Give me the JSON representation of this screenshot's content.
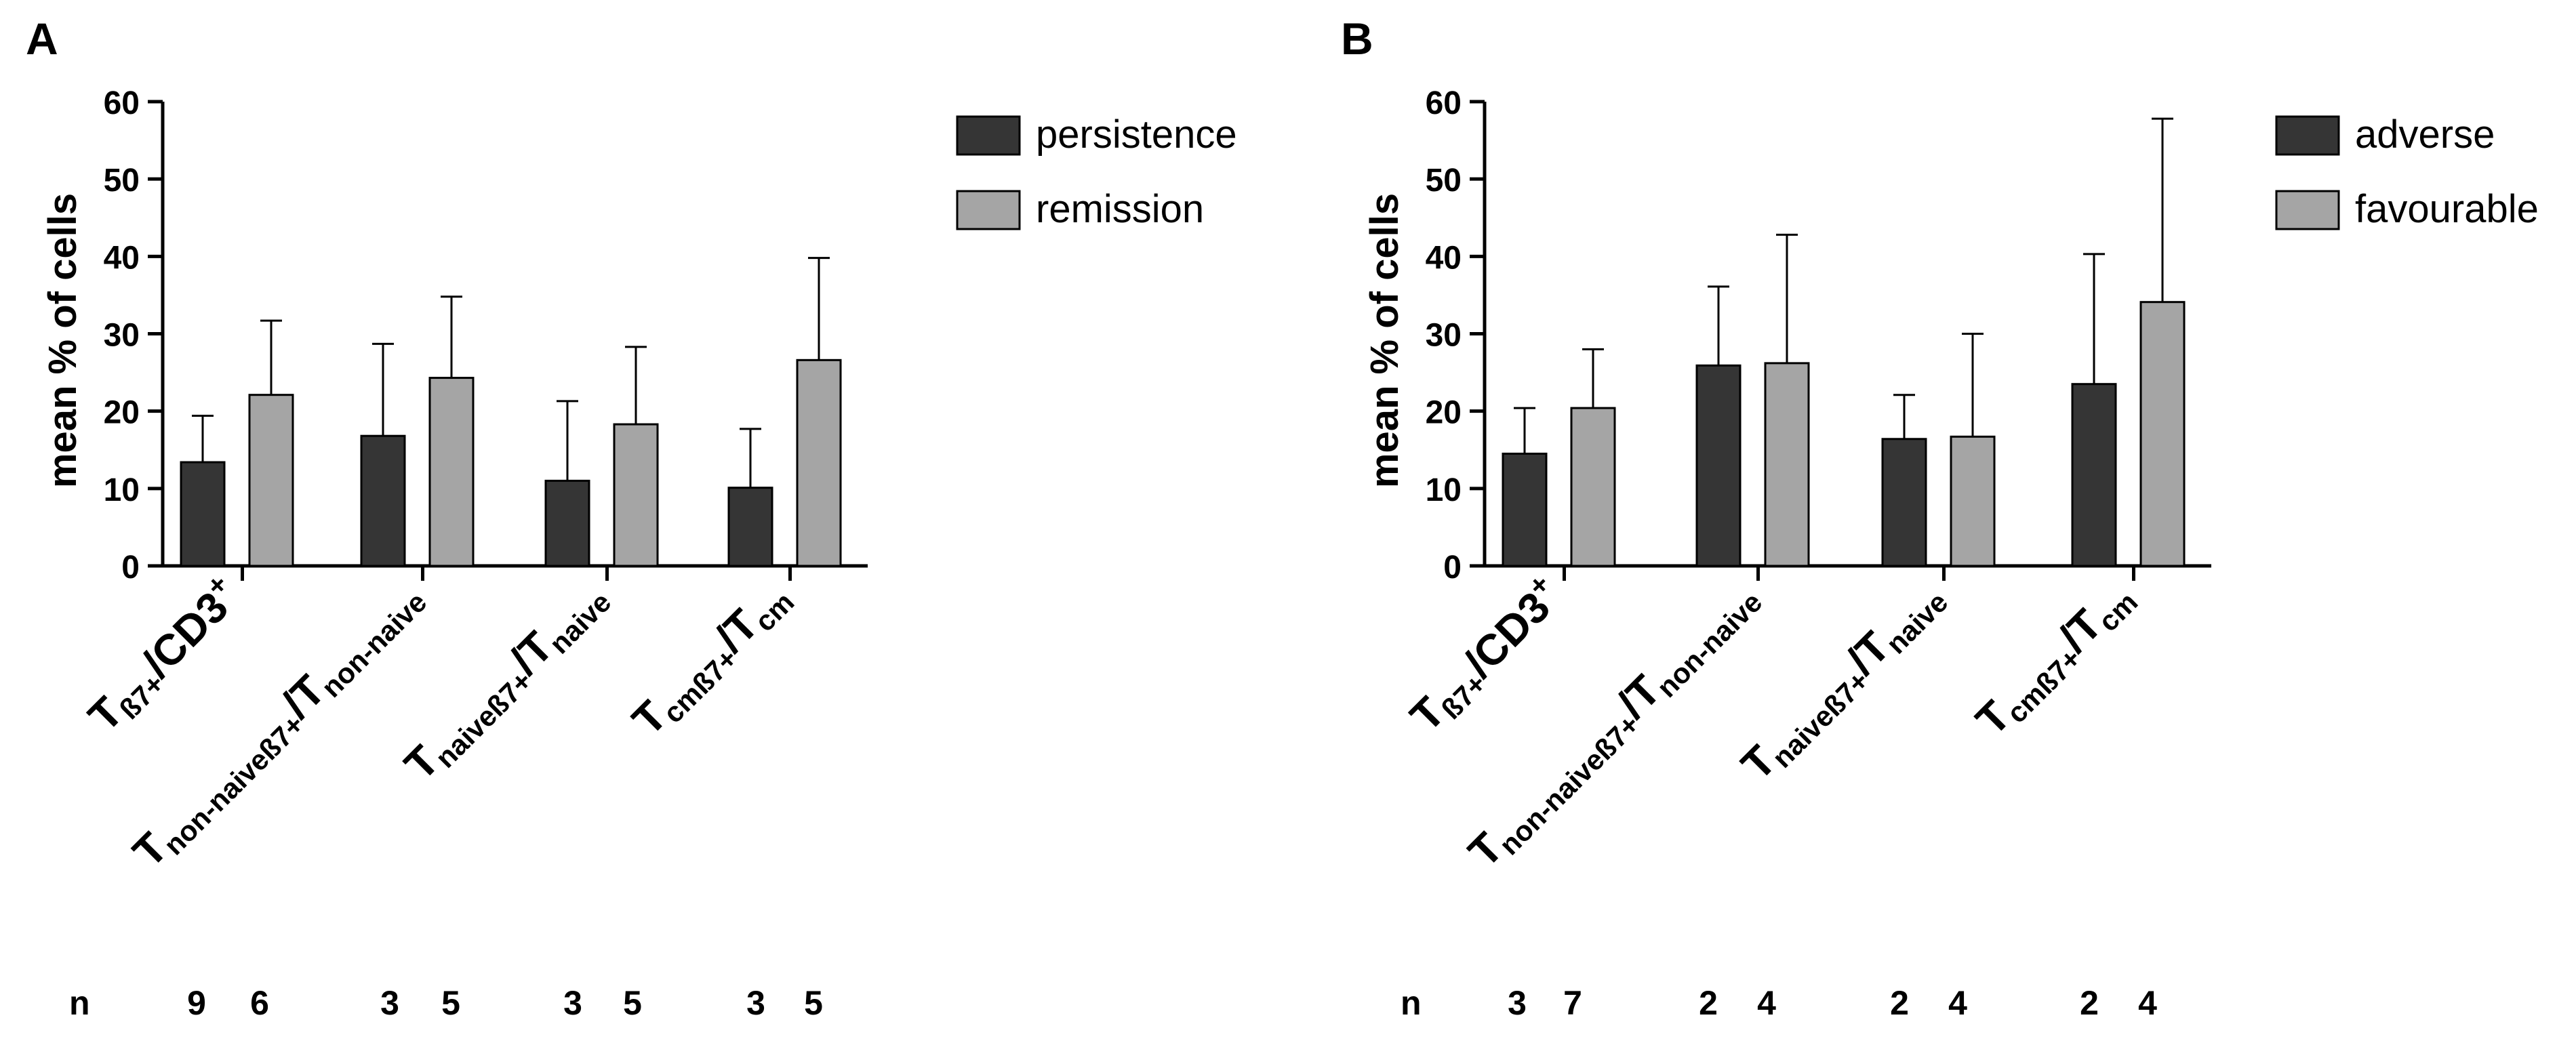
{
  "chart_data": [
    {
      "panel_label": "A",
      "type": "bar",
      "ylabel": "mean % of cells",
      "ylim": [
        0,
        60
      ],
      "yticks": [
        "0",
        "10",
        "20",
        "30",
        "40",
        "50",
        "60"
      ],
      "categories": [
        {
          "parts": [
            [
              "T",
              "b"
            ],
            [
              "ß7+",
              "sub"
            ],
            [
              "/CD3",
              "b"
            ],
            [
              "+",
              "sup"
            ]
          ]
        },
        {
          "parts": [
            [
              "T",
              "b"
            ],
            [
              "non-naiveß7+",
              "sub"
            ],
            [
              "/T",
              "b"
            ],
            [
              "non-naive",
              "sub"
            ]
          ]
        },
        {
          "parts": [
            [
              "T",
              "b"
            ],
            [
              "naiveß7+",
              "sub"
            ],
            [
              "/T",
              "b"
            ],
            [
              "naive",
              "sub"
            ]
          ]
        },
        {
          "parts": [
            [
              "T",
              "b"
            ],
            [
              "cmß7+",
              "sub"
            ],
            [
              "/T",
              "b"
            ],
            [
              "cm",
              "sub"
            ]
          ]
        }
      ],
      "series": [
        {
          "name": "persistence",
          "color": "#353535",
          "values": [
            13.4,
            16.8,
            11.0,
            10.1
          ],
          "errors": [
            6.0,
            11.9,
            10.3,
            7.6
          ]
        },
        {
          "name": "remission",
          "color": "#a5a5a5",
          "values": [
            22.1,
            24.3,
            18.3,
            26.6
          ],
          "errors": [
            9.6,
            10.5,
            10.0,
            13.2
          ]
        }
      ],
      "n_label": "n",
      "n": [
        [
          "9",
          "6"
        ],
        [
          "3",
          "5"
        ],
        [
          "3",
          "5"
        ],
        [
          "3",
          "5"
        ]
      ]
    },
    {
      "panel_label": "B",
      "type": "bar",
      "ylabel": "mean % of cells",
      "ylim": [
        0,
        60
      ],
      "yticks": [
        "0",
        "10",
        "20",
        "30",
        "40",
        "50",
        "60"
      ],
      "categories": [
        {
          "parts": [
            [
              "T",
              "b"
            ],
            [
              "ß7+",
              "sub"
            ],
            [
              "/CD3",
              "b"
            ],
            [
              "+",
              "sup"
            ]
          ]
        },
        {
          "parts": [
            [
              "T",
              "b"
            ],
            [
              "non-naiveß7+",
              "sub"
            ],
            [
              "/T",
              "b"
            ],
            [
              "non-naive",
              "sub"
            ]
          ]
        },
        {
          "parts": [
            [
              "T",
              "b"
            ],
            [
              "naiveß7+",
              "sub"
            ],
            [
              "/T",
              "b"
            ],
            [
              "naive",
              "sub"
            ]
          ]
        },
        {
          "parts": [
            [
              "T",
              "b"
            ],
            [
              "cmß7+",
              "sub"
            ],
            [
              "/T",
              "b"
            ],
            [
              "cm",
              "sub"
            ]
          ]
        }
      ],
      "series": [
        {
          "name": "adverse",
          "color": "#353535",
          "values": [
            14.5,
            25.9,
            16.4,
            23.5
          ],
          "errors": [
            5.9,
            10.2,
            5.7,
            16.8
          ]
        },
        {
          "name": "favourable",
          "color": "#a5a5a5",
          "values": [
            20.4,
            26.2,
            16.7,
            34.1
          ],
          "errors": [
            7.6,
            16.6,
            13.3,
            23.7
          ]
        }
      ],
      "n_label": "n",
      "n": [
        [
          "3",
          "7"
        ],
        [
          "2",
          "4"
        ],
        [
          "2",
          "4"
        ],
        [
          "2",
          "4"
        ]
      ]
    }
  ]
}
